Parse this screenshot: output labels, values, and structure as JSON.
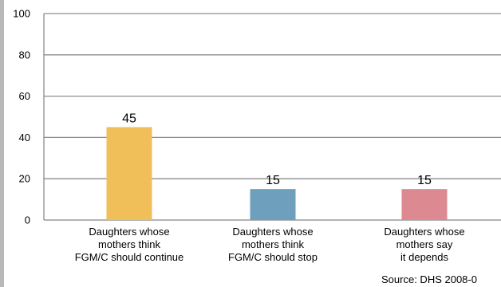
{
  "chart_data": {
    "type": "bar",
    "categories": [
      [
        "Daughters whose",
        "mothers think",
        "FGM/C should continue"
      ],
      [
        "Daughters whose",
        "mothers think",
        "FGM/C should stop"
      ],
      [
        "Daughters whose",
        "mothers say",
        "it depends"
      ]
    ],
    "values": [
      45,
      15,
      15
    ],
    "value_labels": [
      "45",
      "15",
      "15"
    ],
    "bar_colors": [
      "#f0bf5a",
      "#6e9fbd",
      "#dc8992"
    ],
    "ylim": [
      0,
      100
    ],
    "yticks": [
      "0",
      "20",
      "40",
      "60",
      "80",
      "100"
    ],
    "grid": true,
    "title": "",
    "xlabel": "",
    "ylabel": "",
    "source": "Source: DHS 2008-0"
  }
}
